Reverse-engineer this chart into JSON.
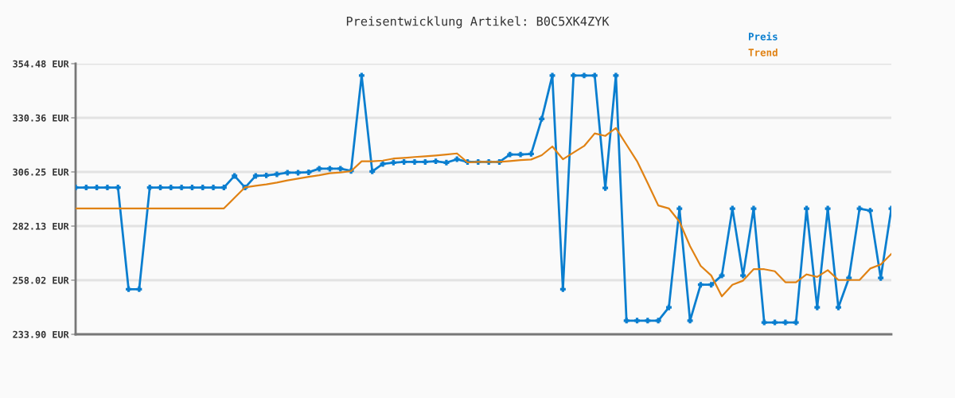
{
  "chart_data": {
    "type": "line",
    "title": "Preisentwicklung Artikel: B0C5XK4ZYK",
    "categories": [
      null,
      null,
      null,
      null,
      null,
      null,
      null,
      null,
      null,
      null,
      null,
      null,
      null,
      null,
      null,
      null,
      null,
      null,
      null,
      null,
      null,
      null,
      null,
      null,
      null,
      null,
      null,
      null,
      null,
      null,
      null,
      null,
      null,
      null,
      null,
      null,
      null,
      null,
      null,
      null,
      null,
      null,
      null,
      null,
      null,
      null,
      null,
      null,
      null,
      null,
      null,
      null,
      null,
      null,
      null,
      null,
      null,
      null,
      null,
      null,
      null,
      null,
      null,
      null,
      null,
      null,
      null,
      null,
      null,
      null,
      null,
      null,
      null,
      null,
      null,
      null,
      null,
      null
    ],
    "series": [
      {
        "name": "Preis",
        "color": "#0a7ecf",
        "marker": "cross",
        "values": [
          299.3,
          299.3,
          299.3,
          299.3,
          299.3,
          254.0,
          254.0,
          299.3,
          299.3,
          299.3,
          299.3,
          299.3,
          299.3,
          299.3,
          299.3,
          304.5,
          299.3,
          304.5,
          304.7,
          305.2,
          305.9,
          305.9,
          306.1,
          307.7,
          307.7,
          307.7,
          306.7,
          349.2,
          306.5,
          309.8,
          310.4,
          310.7,
          310.7,
          310.7,
          311.0,
          310.4,
          311.9,
          310.7,
          310.7,
          310.7,
          310.7,
          314.0,
          314.0,
          314.3,
          329.9,
          349.2,
          254.0,
          349.2,
          349.2,
          349.2,
          299.1,
          349.2,
          240.0,
          240.0,
          240.0,
          240.0,
          245.9,
          289.9,
          240.0,
          256.0,
          256.0,
          260.1,
          289.9,
          260.1,
          289.9,
          239.2,
          239.2,
          239.2,
          239.2,
          289.9,
          245.9,
          289.9,
          245.9,
          259.0,
          289.9,
          289.0,
          259.0,
          289.9
        ]
      },
      {
        "name": "Trend",
        "color": "#e08214",
        "values": [
          290.0,
          290.0,
          290.0,
          290.0,
          290.0,
          290.0,
          290.0,
          290.0,
          290.0,
          290.0,
          290.0,
          290.0,
          290.0,
          290.0,
          290.0,
          294.7,
          299.4,
          300.1,
          300.7,
          301.5,
          302.5,
          303.3,
          304.1,
          304.8,
          305.7,
          306.0,
          306.6,
          311.0,
          311.0,
          311.3,
          312.2,
          312.5,
          312.9,
          313.2,
          313.6,
          314.0,
          314.5,
          310.5,
          310.7,
          310.7,
          310.7,
          311.1,
          311.5,
          311.8,
          313.7,
          317.6,
          311.9,
          314.9,
          317.8,
          323.4,
          322.3,
          325.8,
          318.4,
          311.0,
          301.3,
          291.3,
          290.0,
          284.1,
          273.2,
          264.4,
          260.1,
          250.8,
          256.0,
          257.8,
          262.9,
          262.9,
          262.0,
          257.1,
          257.1,
          260.6,
          259.5,
          262.5,
          258.1,
          258.1,
          258.1,
          263.2,
          265.0,
          269.7
        ]
      }
    ],
    "ylim": [
      233.9,
      354.48
    ],
    "yticks": [
      {
        "value": 233.9,
        "label": "233.90 EUR"
      },
      {
        "value": 258.02,
        "label": "258.02 EUR"
      },
      {
        "value": 282.13,
        "label": "282.13 EUR"
      },
      {
        "value": 306.25,
        "label": "306.25 EUR"
      },
      {
        "value": 330.36,
        "label": "330.36 EUR"
      },
      {
        "value": 354.48,
        "label": "354.48 EUR"
      }
    ],
    "grid": "y",
    "legend": "top right",
    "tick_labels": "y"
  }
}
